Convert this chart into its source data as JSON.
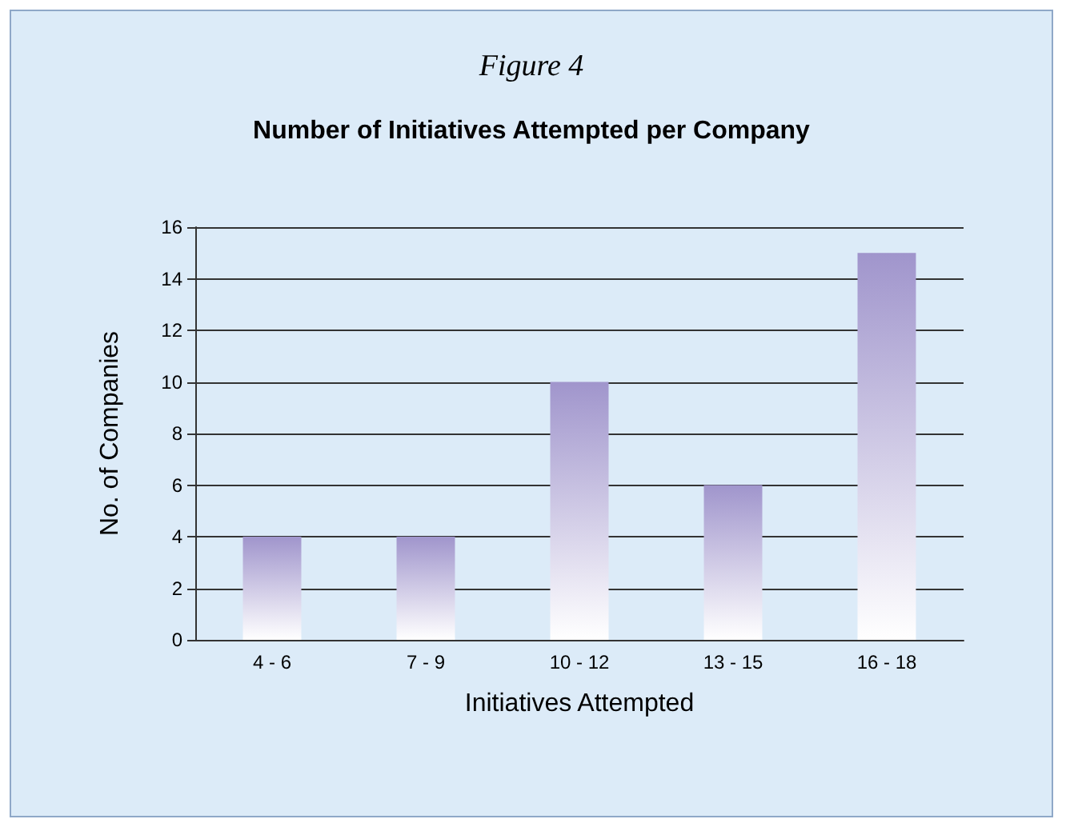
{
  "chart_data": {
    "type": "bar",
    "subtitle": "Figure 4",
    "title": "Number of Initiatives Attempted per Company",
    "xlabel": "Initiatives Attempted",
    "ylabel": "No. of Companies",
    "categories": [
      "4 - 6",
      "7 - 9",
      "10 - 12",
      "13 - 15",
      "16 - 18"
    ],
    "values": [
      4,
      4,
      10,
      6,
      15
    ],
    "color": "#a095cc",
    "ylim": [
      0,
      16
    ],
    "yticks": [
      0,
      2,
      4,
      6,
      8,
      10,
      12,
      14,
      16
    ],
    "grid": "y"
  }
}
